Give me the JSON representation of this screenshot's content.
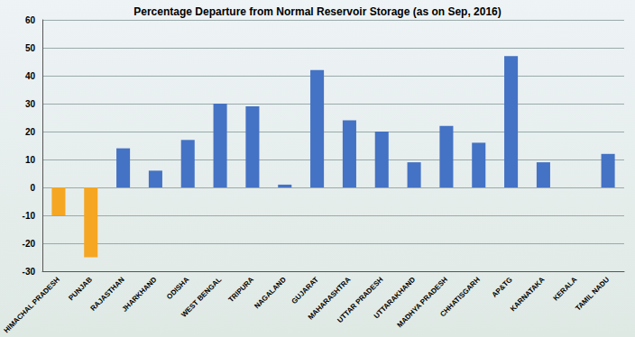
{
  "chart_data": {
    "type": "bar",
    "title": "Percentage Departure from Normal Reservoir Storage (as on Sep, 2016)",
    "categories": [
      "HIMACHAL PRADESH",
      "PUNJAB",
      "RAJASTHAN",
      "JHARKHAND",
      "ODISHA",
      "WEST BENGAL",
      "TRIPURA",
      "NAGALAND",
      "GUJARAT",
      "MAHARASHTRA",
      "UTTAR PRADESH",
      "UTTARAKHAND",
      "MADHYA PRADESH",
      "CHHATISGARH",
      "AP&TG",
      "KARNATAKA",
      "KERALA",
      "TAMIL NADU"
    ],
    "values": [
      -10,
      -25,
      14,
      6,
      17,
      30,
      29,
      1,
      42,
      24,
      20,
      9,
      22,
      16,
      47,
      9,
      0,
      12
    ],
    "colors": [
      "#f5a623",
      "#f5a623",
      "#4472c4",
      "#4472c4",
      "#4472c4",
      "#4472c4",
      "#4472c4",
      "#4472c4",
      "#4472c4",
      "#4472c4",
      "#4472c4",
      "#4472c4",
      "#4472c4",
      "#4472c4",
      "#4472c4",
      "#4472c4",
      "#4472c4",
      "#4472c4"
    ],
    "ylim": [
      -30,
      60
    ],
    "yticks": [
      -30,
      -20,
      -10,
      0,
      10,
      20,
      30,
      40,
      50,
      60
    ],
    "grid": true
  }
}
